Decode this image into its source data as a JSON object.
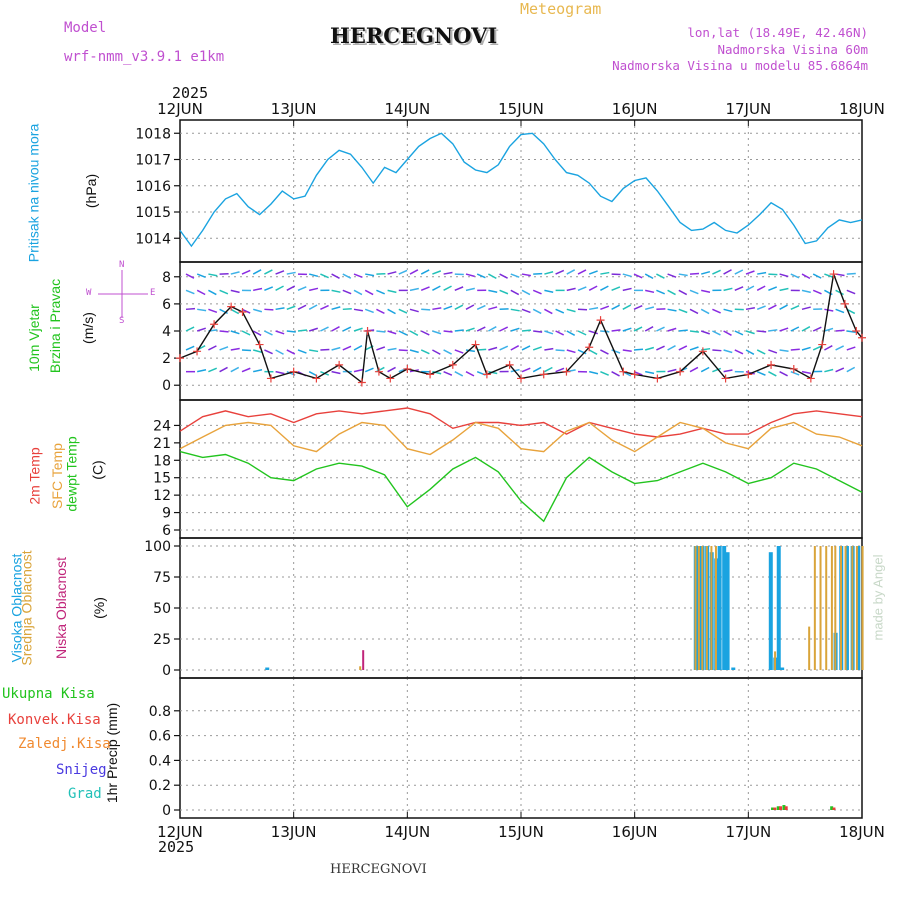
{
  "header": {
    "model_label": "Model",
    "model_name": "wrf-nmm_v3.9.1  e1km",
    "location": "HERCEGNOVI",
    "meteogram": "Meteogram",
    "coords": "lon,lat (18.49E, 42.46N)",
    "elevation": "Nadmorska Visina 60m",
    "model_elevation": "Nadmorska Visina u modelu 85.6864m",
    "year": "2025",
    "footer_location": "HERCEGNOVI",
    "credit": "made by Angel"
  },
  "colors": {
    "pressure": "#1aa3e0",
    "temp2m": "#e8413c",
    "sfc": "#e8a33c",
    "dew": "#22c41e",
    "cloud_high": "#1aa3e0",
    "cloud_mid": "#d9a43a",
    "cloud_low": "#c0257a",
    "rain": "#22c41e",
    "conv": "#e8413c",
    "frz": "#f08a30",
    "snow": "#4a3ae0",
    "hail": "#22c1b8",
    "wind_barb": "#8a2be2"
  },
  "chart_data": [
    {
      "type": "line",
      "title": "",
      "ylabel": [
        "Pritisak  na  nivou  mora",
        "(hPa)"
      ],
      "x_ticks": [
        "12JUN",
        "13JUN",
        "14JUN",
        "15JUN",
        "16JUN",
        "17JUN",
        "18JUN"
      ],
      "x_range_days": [
        0,
        6
      ],
      "ylim": [
        1013.4,
        1018.2
      ],
      "y_ticks": [
        1014,
        1015,
        1016,
        1017,
        1018
      ],
      "series": [
        {
          "name": "",
          "x": [
            0,
            0.1,
            0.2,
            0.3,
            0.4,
            0.5,
            0.6,
            0.7,
            0.8,
            0.9,
            1.0,
            1.1,
            1.2,
            1.3,
            1.4,
            1.5,
            1.6,
            1.7,
            1.8,
            1.9,
            2.0,
            2.1,
            2.2,
            2.3,
            2.4,
            2.5,
            2.6,
            2.7,
            2.8,
            2.9,
            3.0,
            3.1,
            3.2,
            3.3,
            3.4,
            3.5,
            3.6,
            3.7,
            3.8,
            3.9,
            4.0,
            4.1,
            4.2,
            4.3,
            4.4,
            4.5,
            4.6,
            4.7,
            4.8,
            4.9,
            5.0,
            5.1,
            5.2,
            5.3,
            5.4,
            5.5,
            5.6,
            5.7,
            5.8,
            5.9,
            6.0
          ],
          "values": [
            1014.3,
            1013.7,
            1014.3,
            1015.0,
            1015.5,
            1015.7,
            1015.2,
            1014.9,
            1015.3,
            1015.8,
            1015.5,
            1015.6,
            1016.4,
            1017.0,
            1017.35,
            1017.2,
            1016.7,
            1016.1,
            1016.7,
            1016.5,
            1017.0,
            1017.5,
            1017.8,
            1018.0,
            1017.6,
            1016.9,
            1016.6,
            1016.5,
            1016.8,
            1017.5,
            1017.95,
            1018.0,
            1017.6,
            1017.0,
            1016.5,
            1016.4,
            1016.1,
            1015.6,
            1015.4,
            1015.9,
            1016.2,
            1016.3,
            1015.8,
            1015.2,
            1014.6,
            1014.3,
            1014.35,
            1014.6,
            1014.3,
            1014.2,
            1014.5,
            1014.9,
            1015.35,
            1015.1,
            1014.5,
            1013.8,
            1013.9,
            1014.4,
            1014.7,
            1014.6,
            1014.7
          ]
        }
      ]
    },
    {
      "type": "line",
      "title": "",
      "ylabel": [
        "10m  Vjetar",
        "Brzina  i  Pravac",
        "(m/s)"
      ],
      "compass": {
        "north": "N",
        "south": "S",
        "east": "E",
        "west": "W"
      },
      "ylim": [
        -0.5,
        8.5
      ],
      "y_ticks": [
        0,
        2,
        4,
        6,
        8
      ],
      "series": [
        {
          "name": "",
          "x": [
            0,
            0.15,
            0.3,
            0.45,
            0.55,
            0.7,
            0.8,
            1.0,
            1.2,
            1.4,
            1.6,
            1.65,
            1.75,
            1.85,
            2.0,
            2.2,
            2.4,
            2.6,
            2.7,
            2.9,
            3.0,
            3.2,
            3.4,
            3.6,
            3.7,
            3.9,
            4.0,
            4.2,
            4.4,
            4.6,
            4.8,
            5.0,
            5.2,
            5.4,
            5.55,
            5.65,
            5.75,
            5.85,
            5.95,
            6.0
          ],
          "values": [
            2.0,
            2.5,
            4.5,
            5.8,
            5.4,
            3.0,
            0.5,
            1.0,
            0.5,
            1.5,
            0.2,
            4.0,
            1.0,
            0.5,
            1.2,
            0.8,
            1.5,
            3.0,
            0.8,
            1.5,
            0.5,
            0.8,
            1.0,
            2.8,
            4.8,
            1.0,
            0.8,
            0.5,
            1.0,
            2.5,
            0.5,
            0.8,
            1.5,
            1.2,
            0.5,
            3.0,
            8.2,
            6.0,
            4.0,
            3.5
          ]
        }
      ]
    },
    {
      "type": "line",
      "title": "",
      "ylabel": [
        "2m  Temp",
        "SFC  Temp",
        "dewpt  Temp",
        "(C)"
      ],
      "ylim": [
        6,
        27
      ],
      "y_ticks": [
        6,
        9,
        12,
        15,
        18,
        21,
        24
      ],
      "series": [
        {
          "name": "",
          "x": [
            0,
            0.2,
            0.4,
            0.6,
            0.8,
            1.0,
            1.2,
            1.4,
            1.6,
            1.8,
            2.0,
            2.2,
            2.4,
            2.6,
            2.8,
            3.0,
            3.2,
            3.4,
            3.6,
            3.8,
            4.0,
            4.2,
            4.4,
            4.6,
            4.8,
            5.0,
            5.2,
            5.4,
            5.6,
            5.8,
            6.0
          ],
          "values": [
            23.0,
            25.5,
            26.5,
            25.5,
            26.0,
            24.5,
            26.0,
            26.5,
            26.0,
            26.5,
            27.0,
            26.0,
            23.5,
            24.5,
            24.5,
            24.0,
            24.5,
            22.5,
            24.5,
            23.5,
            22.5,
            22.0,
            22.5,
            23.5,
            22.5,
            22.5,
            24.5,
            26.0,
            26.5,
            26.0,
            25.5
          ]
        },
        {
          "name": "",
          "x": [
            0,
            0.2,
            0.4,
            0.6,
            0.8,
            1.0,
            1.2,
            1.4,
            1.6,
            1.8,
            2.0,
            2.2,
            2.4,
            2.6,
            2.8,
            3.0,
            3.2,
            3.4,
            3.6,
            3.8,
            4.0,
            4.2,
            4.4,
            4.6,
            4.8,
            5.0,
            5.2,
            5.4,
            5.6,
            5.8,
            6.0
          ],
          "values": [
            20.0,
            22.0,
            24.0,
            24.5,
            24.0,
            20.5,
            19.5,
            22.5,
            24.5,
            24.0,
            20.0,
            19.0,
            21.5,
            24.5,
            23.5,
            20.0,
            19.5,
            23.0,
            24.5,
            21.5,
            19.5,
            22.0,
            24.5,
            23.5,
            21.0,
            20.0,
            23.5,
            24.5,
            22.5,
            22.0,
            20.5
          ]
        },
        {
          "name": "",
          "x": [
            0,
            0.2,
            0.4,
            0.6,
            0.8,
            1.0,
            1.2,
            1.4,
            1.6,
            1.8,
            2.0,
            2.2,
            2.4,
            2.6,
            2.8,
            3.0,
            3.2,
            3.4,
            3.6,
            3.8,
            4.0,
            4.2,
            4.4,
            4.6,
            4.8,
            5.0,
            5.2,
            5.4,
            5.6,
            5.8,
            6.0
          ],
          "values": [
            19.5,
            18.5,
            19.0,
            17.5,
            15.0,
            14.5,
            16.5,
            17.5,
            17.0,
            15.5,
            10.0,
            13.0,
            16.5,
            18.5,
            16.0,
            11.0,
            7.5,
            15.0,
            18.5,
            16.0,
            14.0,
            14.5,
            16.0,
            17.5,
            16.0,
            14.0,
            15.0,
            17.5,
            16.5,
            14.5,
            12.5
          ]
        }
      ]
    },
    {
      "type": "bar",
      "title": "",
      "ylabel": [
        "Visoka  Oblacnost",
        "Srednja  Oblacnost",
        "Niska  Oblacnost",
        "(%)"
      ],
      "ylim": [
        0,
        100
      ],
      "y_ticks": [
        0,
        25,
        50,
        75,
        100
      ],
      "series": [
        {
          "name": "",
          "x": [
            0.75,
            4.52,
            4.55,
            4.58,
            4.62,
            4.66,
            4.7,
            4.73,
            4.77,
            4.8,
            4.85,
            5.18,
            5.22,
            5.25,
            5.28,
            5.75,
            5.8,
            5.85,
            5.9,
            5.95
          ],
          "values": [
            2,
            100,
            100,
            100,
            100,
            95,
            90,
            100,
            100,
            95,
            2,
            95,
            10,
            100,
            2,
            30,
            100,
            100,
            100,
            100
          ]
        },
        {
          "name": "",
          "x": [
            1.55,
            4.5,
            4.53,
            4.56,
            4.6,
            4.64,
            4.68,
            5.2,
            5.5,
            5.55,
            5.6,
            5.65,
            5.7,
            5.73,
            5.78,
            5.82,
            5.88,
            5.92,
            5.97
          ],
          "values": [
            3,
            100,
            100,
            100,
            100,
            100,
            100,
            15,
            35,
            100,
            100,
            100,
            100,
            100,
            100,
            100,
            100,
            100,
            100
          ]
        },
        {
          "name": "",
          "x": [
            1.55
          ],
          "values": [
            16
          ]
        }
      ]
    },
    {
      "type": "bar",
      "title": "",
      "ylabel": [
        "1hr  Precip  (mm)"
      ],
      "legend": [
        "Ukupna  Kisa",
        "Konvek.Kisa",
        "Zaledj.Kisa",
        "Snijeg",
        "Grad"
      ],
      "ylim": [
        0,
        1
      ],
      "y_ticks": [
        0,
        0.2,
        0.4,
        0.6,
        0.8
      ],
      "series": [
        {
          "name": "Ukupna  Kisa",
          "x": [
            5.2,
            5.25,
            5.3,
            5.72
          ],
          "values": [
            0.02,
            0.03,
            0.04,
            0.03
          ]
        },
        {
          "name": "Konvek.Kisa",
          "x": [
            5.22,
            5.27,
            5.32,
            5.74
          ],
          "values": [
            0.02,
            0.03,
            0.03,
            0.02
          ]
        }
      ]
    }
  ]
}
